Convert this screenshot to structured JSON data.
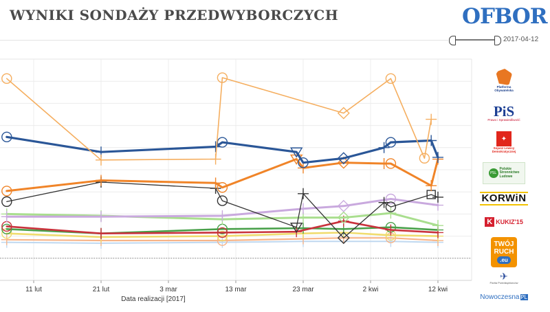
{
  "header": {
    "title": "WYNIKI SONDAŻY PRZEDWYBORCZYCH",
    "logo_text": "OFBOR"
  },
  "date_range": {
    "end_label": "2017-04-12"
  },
  "parties": [
    {
      "name": "Platforma Obywatelska",
      "logo_lines": [
        "Platforma",
        "Obywatelska"
      ],
      "color": "#E87722"
    },
    {
      "name": "PiS",
      "logo_main": "PiS",
      "logo_sub": "Prawo i Sprawiedliwość",
      "color": "#1C3F94"
    },
    {
      "name": "Sojusz Lewicy Demokratycznej",
      "logo_lines": [
        "Sojusz Lewicy",
        "Demokratycznej"
      ],
      "color": "#E1261C"
    },
    {
      "name": "Polskie Stronnictwo Ludowe",
      "logo_lines": [
        "Polskie",
        "Stronnictwo",
        "Ludowe"
      ],
      "color": "#3A9B35"
    },
    {
      "name": "KORWiN",
      "logo_main": "KORWiN",
      "color": "#111111"
    },
    {
      "name": "KUKIZ'15",
      "logo_main": "KUKIZ'15",
      "color": "#D5202F"
    },
    {
      "name": "Twój Ruch",
      "logo_lines": [
        "TWÓJ",
        "RUCH"
      ],
      "logo_sub": ".eu",
      "color": "#F39200"
    },
    {
      "name": "Partia Przedsiębiorców",
      "logo_sub": "Partia Przedsiębiorców",
      "color": "#2D4F9E"
    },
    {
      "name": ".Nowoczesna",
      "logo_main": "Nowoczesna",
      "logo_sub": "PL",
      "color": "#2F6FC0"
    }
  ],
  "chart_data": {
    "type": "line",
    "xlabel": "Data realizacji [2017]",
    "ylabel": "",
    "x_ticks": [
      "11 lut",
      "21 lut",
      "3 mar",
      "13 mar",
      "23 mar",
      "2 kwi",
      "12 kwi"
    ],
    "x_tick_dates": [
      "2017-02-11",
      "2017-02-21",
      "2017-03-03",
      "2017-03-13",
      "2017-03-23",
      "2017-04-02",
      "2017-04-12"
    ],
    "xlim": [
      "2017-02-06",
      "2017-04-17"
    ],
    "ylim": [
      0,
      50
    ],
    "y_ticks": [
      0,
      5,
      10,
      15,
      20,
      25,
      30,
      35,
      40,
      45
    ],
    "grid": true,
    "reference_line_y": 5,
    "series": [
      {
        "color": "#F5AE5F",
        "width": 1.6,
        "values": [
          {
            "x": "2017-02-07",
            "y": 45.6,
            "m": "circle"
          },
          {
            "x": "2017-02-21",
            "y": 27.2,
            "m": "plus"
          },
          {
            "x": "2017-03-10",
            "y": 27.4,
            "m": "plus"
          },
          {
            "x": "2017-03-11",
            "y": 45.8,
            "m": "circle"
          },
          {
            "x": "2017-03-29",
            "y": 37.8,
            "m": "diamond"
          },
          {
            "x": "2017-04-05",
            "y": 45.6,
            "m": "circle"
          },
          {
            "x": "2017-04-10",
            "y": 27.6,
            "m": "circle"
          },
          {
            "x": "2017-04-11",
            "y": 36.4,
            "m": "plus"
          }
        ]
      },
      {
        "color": "#2A5697",
        "width": 3.2,
        "values": [
          {
            "x": "2017-02-07",
            "y": 32.4,
            "m": "circle"
          },
          {
            "x": "2017-02-21",
            "y": 29.0,
            "m": "plus"
          },
          {
            "x": "2017-03-10",
            "y": 30.2,
            "m": "plus"
          },
          {
            "x": "2017-03-11",
            "y": 31.2,
            "m": "circle"
          },
          {
            "x": "2017-03-22",
            "y": 29.0,
            "m": "triangle"
          },
          {
            "x": "2017-03-23",
            "y": 26.6,
            "m": "circle"
          },
          {
            "x": "2017-03-29",
            "y": 27.6,
            "m": "diamond"
          },
          {
            "x": "2017-04-04",
            "y": 30.0,
            "m": "plus"
          },
          {
            "x": "2017-04-05",
            "y": 31.2,
            "m": "circle"
          },
          {
            "x": "2017-04-11",
            "y": 31.6,
            "m": "plus"
          },
          {
            "x": "2017-04-12",
            "y": 27.8,
            "m": "plus"
          }
        ]
      },
      {
        "color": "#F08428",
        "width": 3.0,
        "values": [
          {
            "x": "2017-02-07",
            "y": 20.2,
            "m": "circle"
          },
          {
            "x": "2017-02-21",
            "y": 22.6,
            "m": "plus"
          },
          {
            "x": "2017-03-10",
            "y": 22.0,
            "m": "plus"
          },
          {
            "x": "2017-03-11",
            "y": 21.0,
            "m": "circle"
          },
          {
            "x": "2017-03-22",
            "y": 27.4,
            "m": "triangle"
          },
          {
            "x": "2017-03-23",
            "y": 25.4,
            "m": "plus"
          },
          {
            "x": "2017-03-29",
            "y": 26.6,
            "m": "diamond"
          },
          {
            "x": "2017-04-04",
            "y": 26.4,
            "m": "plus"
          },
          {
            "x": "2017-04-05",
            "y": 26.4,
            "m": "circle"
          },
          {
            "x": "2017-04-11",
            "y": 21.4,
            "m": "plus"
          },
          {
            "x": "2017-04-12",
            "y": 27.4,
            "m": "plus"
          }
        ]
      },
      {
        "color": "#333333",
        "width": 1.3,
        "values": [
          {
            "x": "2017-02-07",
            "y": 17.8,
            "m": "circle"
          },
          {
            "x": "2017-02-21",
            "y": 22.2,
            "m": "plus"
          },
          {
            "x": "2017-03-10",
            "y": 20.8,
            "m": "plus"
          },
          {
            "x": "2017-03-11",
            "y": 18.0,
            "m": "circle"
          },
          {
            "x": "2017-03-22",
            "y": 12.0,
            "m": "triangle"
          },
          {
            "x": "2017-03-23",
            "y": 19.6,
            "m": "plus"
          },
          {
            "x": "2017-03-29",
            "y": 9.6,
            "m": "diamond"
          },
          {
            "x": "2017-04-04",
            "y": 17.6,
            "m": "plus"
          },
          {
            "x": "2017-04-05",
            "y": 16.6,
            "m": "circle"
          },
          {
            "x": "2017-04-11",
            "y": 19.4,
            "m": "square"
          },
          {
            "x": "2017-04-12",
            "y": 18.8,
            "m": "plus"
          }
        ]
      },
      {
        "color": "#C9A9DE",
        "width": 3.0,
        "values": [
          {
            "x": "2017-02-07",
            "y": 14.4,
            "m": "plus"
          },
          {
            "x": "2017-02-21",
            "y": 14.4,
            "m": "plus"
          },
          {
            "x": "2017-03-11",
            "y": 14.6,
            "m": "plus"
          },
          {
            "x": "2017-03-23",
            "y": 16.2,
            "m": "plus"
          },
          {
            "x": "2017-03-29",
            "y": 16.8,
            "m": "diamond"
          },
          {
            "x": "2017-04-05",
            "y": 18.4,
            "m": "circle"
          },
          {
            "x": "2017-04-12",
            "y": 17.0,
            "m": "plus"
          }
        ]
      },
      {
        "color": "#A9DE8E",
        "width": 3.0,
        "values": [
          {
            "x": "2017-02-07",
            "y": 15.0,
            "m": "plus"
          },
          {
            "x": "2017-02-21",
            "y": 14.6,
            "m": "plus"
          },
          {
            "x": "2017-03-11",
            "y": 13.8,
            "m": "plus"
          },
          {
            "x": "2017-03-23",
            "y": 14.2,
            "m": "plus"
          },
          {
            "x": "2017-03-29",
            "y": 14.2,
            "m": "diamond"
          },
          {
            "x": "2017-04-05",
            "y": 15.2,
            "m": "plus"
          },
          {
            "x": "2017-04-12",
            "y": 12.4,
            "m": "plus"
          }
        ]
      },
      {
        "color": "#C9323C",
        "width": 2.6,
        "values": [
          {
            "x": "2017-02-07",
            "y": 12.2,
            "m": "circle"
          },
          {
            "x": "2017-02-21",
            "y": 10.6,
            "m": "plus"
          },
          {
            "x": "2017-03-11",
            "y": 10.8,
            "m": "circle"
          },
          {
            "x": "2017-03-22",
            "y": 11.0,
            "m": "plus"
          },
          {
            "x": "2017-03-29",
            "y": 13.4,
            "m": "plus"
          },
          {
            "x": "2017-04-05",
            "y": 11.4,
            "m": "plus"
          },
          {
            "x": "2017-04-12",
            "y": 10.8,
            "m": "plus"
          }
        ]
      },
      {
        "color": "#49A04A",
        "width": 2.6,
        "values": [
          {
            "x": "2017-02-07",
            "y": 11.6,
            "m": "circle"
          },
          {
            "x": "2017-02-21",
            "y": 10.6,
            "m": "plus"
          },
          {
            "x": "2017-03-11",
            "y": 11.6,
            "m": "circle"
          },
          {
            "x": "2017-03-23",
            "y": 11.8,
            "m": "plus"
          },
          {
            "x": "2017-03-29",
            "y": 11.6,
            "m": "plus"
          },
          {
            "x": "2017-04-05",
            "y": 12.0,
            "m": "circle"
          },
          {
            "x": "2017-04-12",
            "y": 11.4,
            "m": "plus"
          }
        ]
      },
      {
        "color": "#F0DC6E",
        "width": 2.6,
        "values": [
          {
            "x": "2017-02-07",
            "y": 10.6,
            "m": "circle"
          },
          {
            "x": "2017-02-21",
            "y": 9.8,
            "m": "plus"
          },
          {
            "x": "2017-03-11",
            "y": 10.0,
            "m": "circle"
          },
          {
            "x": "2017-03-23",
            "y": 10.6,
            "m": "plus"
          },
          {
            "x": "2017-03-29",
            "y": 10.8,
            "m": "plus"
          },
          {
            "x": "2017-04-05",
            "y": 10.2,
            "m": "circle"
          },
          {
            "x": "2017-04-12",
            "y": 10.0,
            "m": "plus"
          }
        ]
      },
      {
        "color": "#F7B488",
        "width": 2.2,
        "values": [
          {
            "x": "2017-02-07",
            "y": 9.2,
            "m": "plus"
          },
          {
            "x": "2017-02-21",
            "y": 9.0,
            "m": "plus"
          },
          {
            "x": "2017-03-11",
            "y": 9.0,
            "m": "circle"
          },
          {
            "x": "2017-03-23",
            "y": 9.4,
            "m": "plus"
          },
          {
            "x": "2017-03-29",
            "y": 9.6,
            "m": "plus"
          },
          {
            "x": "2017-04-05",
            "y": 9.6,
            "m": "circle"
          },
          {
            "x": "2017-04-12",
            "y": 9.0,
            "m": "plus"
          }
        ]
      },
      {
        "color": "#BFD8F0",
        "width": 2.0,
        "values": [
          {
            "x": "2017-02-07",
            "y": 8.6,
            "m": "plus"
          },
          {
            "x": "2017-02-21",
            "y": 8.4,
            "m": "plus"
          },
          {
            "x": "2017-03-11",
            "y": 8.6,
            "m": "plus"
          },
          {
            "x": "2017-03-23",
            "y": 8.8,
            "m": "plus"
          },
          {
            "x": "2017-04-05",
            "y": 8.8,
            "m": "plus"
          },
          {
            "x": "2017-04-12",
            "y": 8.6,
            "m": "plus"
          }
        ]
      }
    ]
  }
}
